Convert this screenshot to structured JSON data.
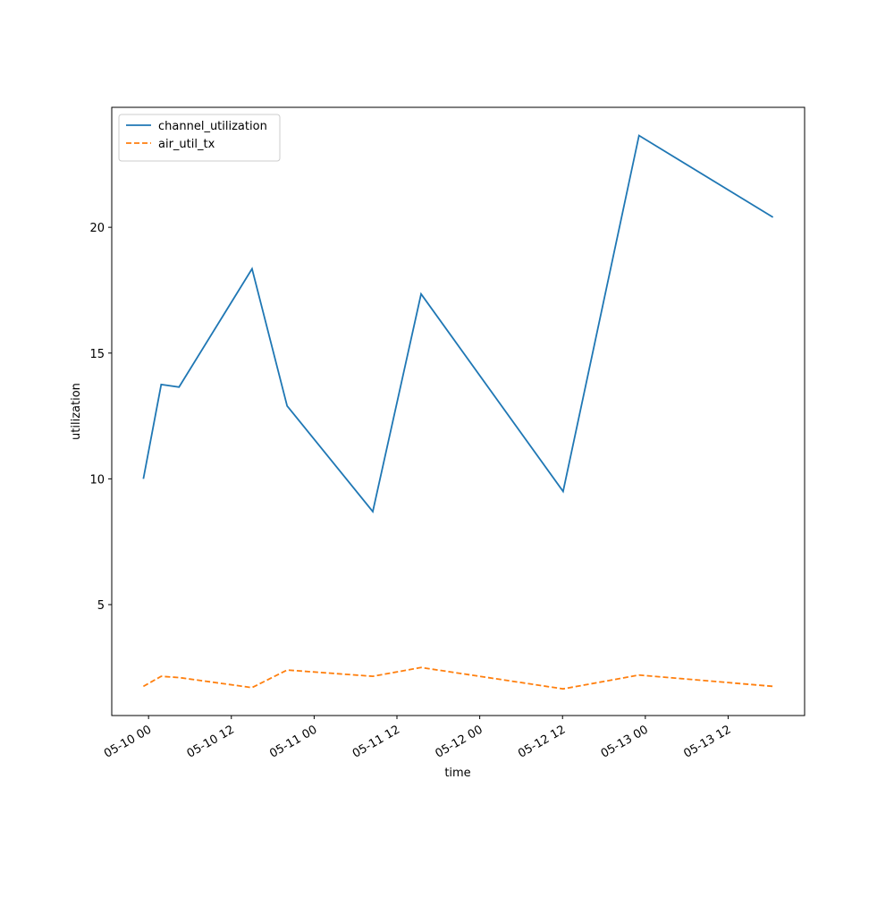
{
  "chart_data": {
    "type": "line",
    "x_label": "time",
    "y_label": "utilization",
    "x": [
      "05-09 23:15",
      "05-10 01:50",
      "05-10 04:25",
      "05-10 15:00",
      "05-10 20:05",
      "05-11 08:30",
      "05-11 15:30",
      "05-12 12:05",
      "05-12 23:05",
      "05-13 18:30"
    ],
    "series": [
      {
        "name": "channel_utilization",
        "color": "#1f77b4",
        "linestyle": "solid",
        "values": [
          10.0,
          13.75,
          13.65,
          18.35,
          12.9,
          8.7,
          17.35,
          9.5,
          23.65,
          20.4
        ]
      },
      {
        "name": "air_util_tx",
        "color": "#ff7f0e",
        "linestyle": "dashed",
        "values": [
          1.75,
          2.15,
          2.1,
          1.7,
          2.4,
          2.15,
          2.5,
          1.65,
          2.2,
          1.75
        ]
      }
    ],
    "xlim": [
      "05-09 18:40",
      "05-13 23:05"
    ],
    "xticks": [
      "05-10 00",
      "05-10 12",
      "05-11 00",
      "05-11 12",
      "05-12 00",
      "05-12 12",
      "05-13 00",
      "05-13 12"
    ],
    "ylim": [
      0.59,
      24.77
    ],
    "yticks": [
      5,
      10,
      15,
      20
    ],
    "grid": false,
    "legend": "upper left"
  }
}
